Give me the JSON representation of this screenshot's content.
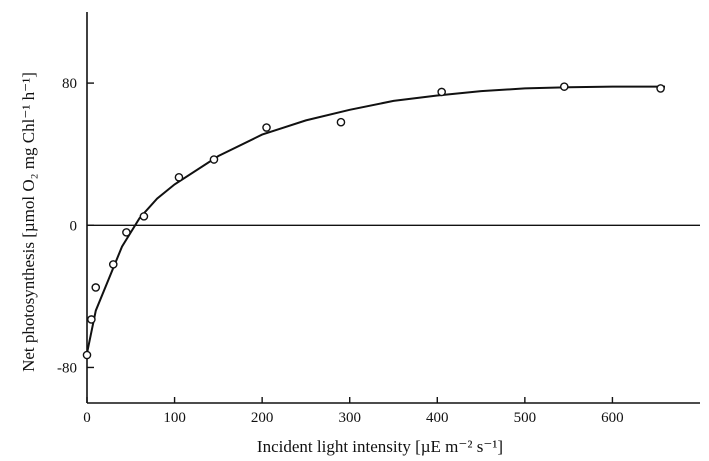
{
  "chart_data": {
    "type": "scatter",
    "title": "",
    "xlabel": "Incident light intensity [µE m⁻² s⁻¹]",
    "ylabel": "Net photosynthesis [µmol O₂ mg Chl⁻¹ h⁻¹]",
    "xlim": [
      0,
      700
    ],
    "ylim": [
      -100,
      120
    ],
    "xticks": [
      0,
      100,
      200,
      300,
      400,
      500,
      600
    ],
    "yticks": [
      -80,
      0,
      80
    ],
    "grid": false,
    "reference_line_y": 0,
    "series": [
      {
        "points": [
          {
            "x": 0,
            "y": -73
          },
          {
            "x": 5,
            "y": -53
          },
          {
            "x": 10,
            "y": -35
          },
          {
            "x": 30,
            "y": -22
          },
          {
            "x": 45,
            "y": -4
          },
          {
            "x": 65,
            "y": 5
          },
          {
            "x": 105,
            "y": 27
          },
          {
            "x": 145,
            "y": 37
          },
          {
            "x": 205,
            "y": 55
          },
          {
            "x": 290,
            "y": 58
          },
          {
            "x": 405,
            "y": 75
          },
          {
            "x": 545,
            "y": 78
          },
          {
            "x": 655,
            "y": 77
          }
        ]
      }
    ],
    "fit_curve": {
      "points": [
        {
          "x": 0,
          "y": -72
        },
        {
          "x": 10,
          "y": -48
        },
        {
          "x": 25,
          "y": -30
        },
        {
          "x": 40,
          "y": -12
        },
        {
          "x": 60,
          "y": 4
        },
        {
          "x": 80,
          "y": 15
        },
        {
          "x": 100,
          "y": 23
        },
        {
          "x": 150,
          "y": 39
        },
        {
          "x": 200,
          "y": 51
        },
        {
          "x": 250,
          "y": 59
        },
        {
          "x": 300,
          "y": 65
        },
        {
          "x": 350,
          "y": 70
        },
        {
          "x": 400,
          "y": 73
        },
        {
          "x": 450,
          "y": 75.5
        },
        {
          "x": 500,
          "y": 77
        },
        {
          "x": 550,
          "y": 77.7
        },
        {
          "x": 600,
          "y": 78
        },
        {
          "x": 660,
          "y": 78
        }
      ]
    }
  }
}
